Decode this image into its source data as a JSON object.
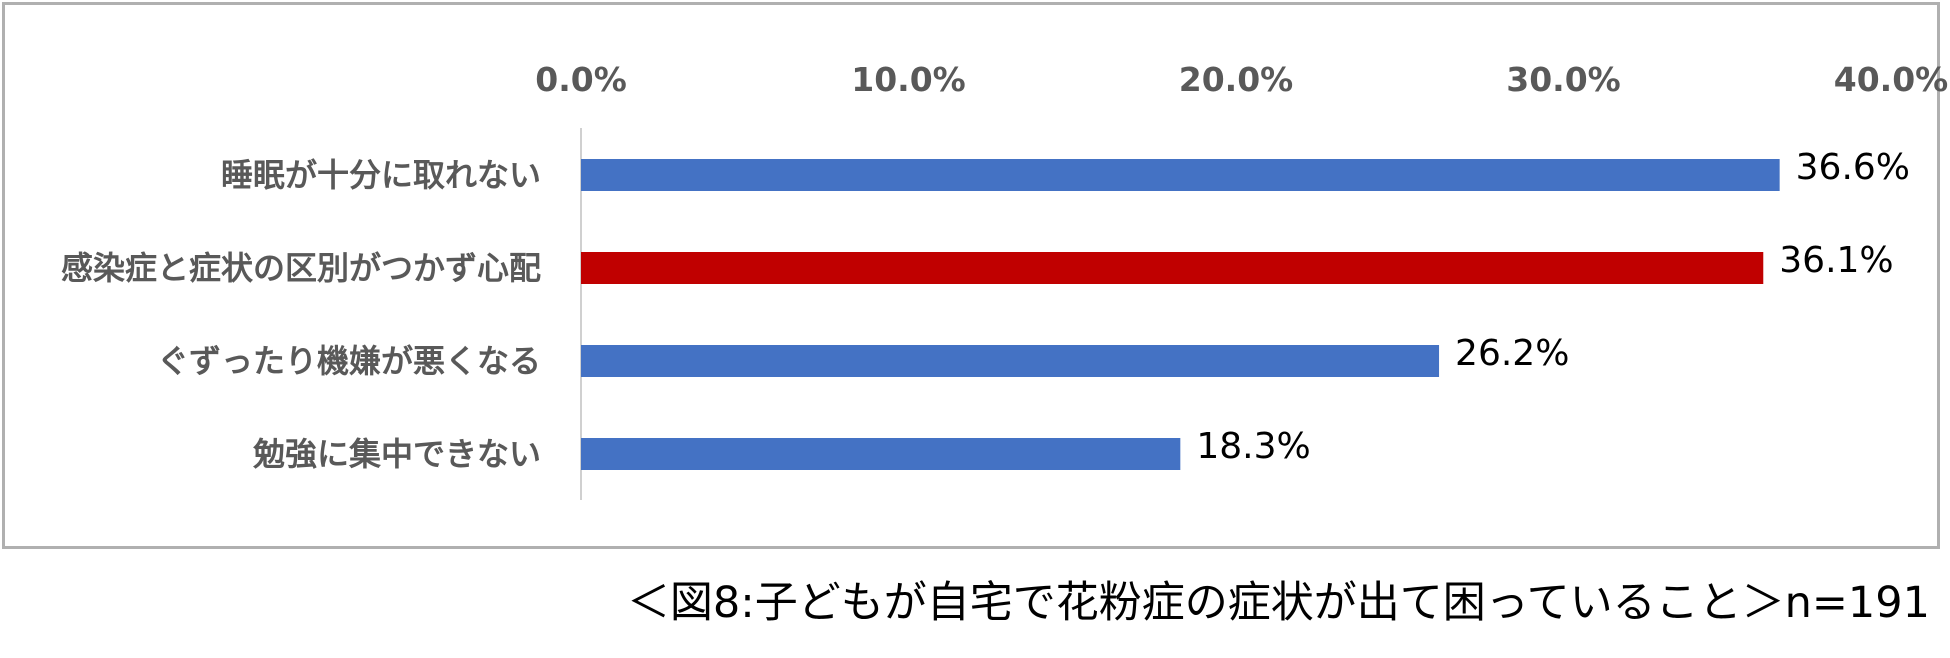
{
  "chart_data": {
    "type": "bar",
    "orientation": "horizontal",
    "categories": [
      "睡眠が十分に取れない",
      "感染症と症状の区別がつかず心配",
      "ぐずったり機嫌が悪くなる",
      "勉強に集中できない"
    ],
    "values": [
      36.6,
      36.1,
      26.2,
      18.3
    ],
    "data_labels": [
      "36.6%",
      "36.1%",
      "26.2%",
      "18.3%"
    ],
    "bar_colors": [
      "#4472C4",
      "#C00000",
      "#4472C4",
      "#4472C4"
    ],
    "xlim": [
      0,
      40
    ],
    "x_ticks": [
      0,
      10,
      20,
      30,
      40
    ],
    "x_tick_labels": [
      "0.0%",
      "10.0%",
      "20.0%",
      "30.0%",
      "40.0%"
    ],
    "x_axis_position": "top",
    "grid": false,
    "legend": "none"
  },
  "caption": "＜図8:子どもが自宅で花粉症の症状が出て困っていること＞n=191"
}
